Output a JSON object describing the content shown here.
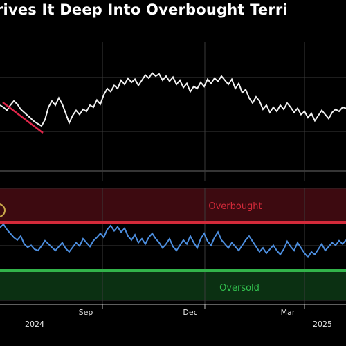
{
  "title": "rives It Deep Into Overbought Terri",
  "colors": {
    "background": "#000000",
    "price_line": "#f2f2f2",
    "decline_marker": "#e0264a",
    "rsi_line": "#4d8fe0",
    "overbought": "#d42a3a",
    "oversold": "#32b34a",
    "overbought_zone": "#3d0a10",
    "oversold_zone": "#0b3012",
    "grid": "#3a3a3a"
  },
  "chart_data": [
    {
      "type": "line",
      "name": "price",
      "grid": true,
      "x": [
        0,
        5,
        10,
        15,
        20,
        25,
        30,
        35,
        40,
        45,
        50,
        55,
        60,
        65,
        70,
        75,
        80,
        85,
        90,
        95,
        100,
        105,
        110,
        115,
        120,
        125,
        130,
        135,
        140,
        145,
        150,
        155,
        160,
        165,
        170,
        175,
        180,
        185,
        190,
        195,
        200,
        205,
        210,
        215,
        220,
        225,
        230,
        235,
        240,
        245,
        250,
        255,
        260,
        265,
        270,
        275,
        280,
        285,
        290,
        295,
        300,
        305,
        310,
        315,
        320,
        325,
        330,
        335,
        340,
        345,
        350,
        355,
        360,
        365,
        370,
        375,
        380,
        385,
        390,
        395,
        400,
        405,
        410,
        415,
        420,
        425,
        430,
        435,
        440,
        445,
        450,
        455,
        460,
        465,
        470,
        475,
        480,
        485,
        490,
        495,
        500
      ],
      "values": [
        0.62,
        0.6,
        0.57,
        0.62,
        0.66,
        0.63,
        0.58,
        0.55,
        0.52,
        0.49,
        0.46,
        0.44,
        0.42,
        0.48,
        0.6,
        0.66,
        0.62,
        0.69,
        0.63,
        0.54,
        0.45,
        0.52,
        0.57,
        0.53,
        0.58,
        0.56,
        0.62,
        0.6,
        0.67,
        0.63,
        0.72,
        0.78,
        0.75,
        0.81,
        0.78,
        0.86,
        0.82,
        0.88,
        0.84,
        0.87,
        0.81,
        0.86,
        0.91,
        0.88,
        0.93,
        0.9,
        0.92,
        0.86,
        0.9,
        0.85,
        0.89,
        0.82,
        0.86,
        0.79,
        0.83,
        0.75,
        0.8,
        0.78,
        0.84,
        0.8,
        0.87,
        0.83,
        0.88,
        0.85,
        0.9,
        0.86,
        0.82,
        0.87,
        0.78,
        0.83,
        0.74,
        0.77,
        0.69,
        0.64,
        0.7,
        0.66,
        0.58,
        0.62,
        0.55,
        0.6,
        0.56,
        0.62,
        0.58,
        0.64,
        0.6,
        0.55,
        0.59,
        0.53,
        0.56,
        0.5,
        0.54,
        0.47,
        0.52,
        0.57,
        0.53,
        0.49,
        0.55,
        0.58,
        0.56,
        0.6,
        0.59
      ]
    },
    {
      "type": "line",
      "name": "rsi",
      "grid": true,
      "x_tick_labels": [
        "Sep",
        "Dec",
        "Mar"
      ],
      "year_labels": [
        "2024",
        "2025"
      ],
      "overbought_label": "Overbought",
      "oversold_label": "Oversold",
      "x": [
        0,
        5,
        10,
        15,
        20,
        25,
        30,
        35,
        40,
        45,
        50,
        55,
        60,
        65,
        70,
        75,
        80,
        85,
        90,
        95,
        100,
        105,
        110,
        115,
        120,
        125,
        130,
        135,
        140,
        145,
        150,
        155,
        160,
        165,
        170,
        175,
        180,
        185,
        190,
        195,
        200,
        205,
        210,
        215,
        220,
        225,
        230,
        235,
        240,
        245,
        250,
        255,
        260,
        265,
        270,
        275,
        280,
        285,
        290,
        295,
        300,
        305,
        310,
        315,
        320,
        325,
        330,
        335,
        340,
        345,
        350,
        355,
        360,
        365,
        370,
        375,
        380,
        385,
        390,
        395,
        400,
        405,
        410,
        415,
        420,
        425,
        430,
        435,
        440,
        445,
        450,
        455,
        460,
        465,
        470,
        475,
        480,
        485,
        490,
        495,
        500
      ],
      "values": [
        0.75,
        0.8,
        0.72,
        0.66,
        0.6,
        0.56,
        0.62,
        0.5,
        0.45,
        0.48,
        0.42,
        0.4,
        0.47,
        0.55,
        0.5,
        0.45,
        0.4,
        0.46,
        0.52,
        0.43,
        0.38,
        0.45,
        0.52,
        0.47,
        0.58,
        0.52,
        0.46,
        0.55,
        0.6,
        0.66,
        0.6,
        0.72,
        0.78,
        0.7,
        0.76,
        0.68,
        0.74,
        0.62,
        0.56,
        0.64,
        0.52,
        0.58,
        0.5,
        0.6,
        0.66,
        0.58,
        0.52,
        0.44,
        0.5,
        0.58,
        0.46,
        0.4,
        0.48,
        0.56,
        0.5,
        0.62,
        0.52,
        0.44,
        0.58,
        0.66,
        0.54,
        0.48,
        0.6,
        0.68,
        0.56,
        0.5,
        0.44,
        0.52,
        0.46,
        0.4,
        0.48,
        0.56,
        0.62,
        0.54,
        0.46,
        0.38,
        0.44,
        0.36,
        0.42,
        0.48,
        0.4,
        0.34,
        0.42,
        0.54,
        0.46,
        0.4,
        0.52,
        0.44,
        0.36,
        0.3,
        0.38,
        0.34,
        0.42,
        0.5,
        0.4,
        0.46,
        0.52,
        0.48,
        0.55,
        0.5,
        0.56
      ]
    }
  ]
}
